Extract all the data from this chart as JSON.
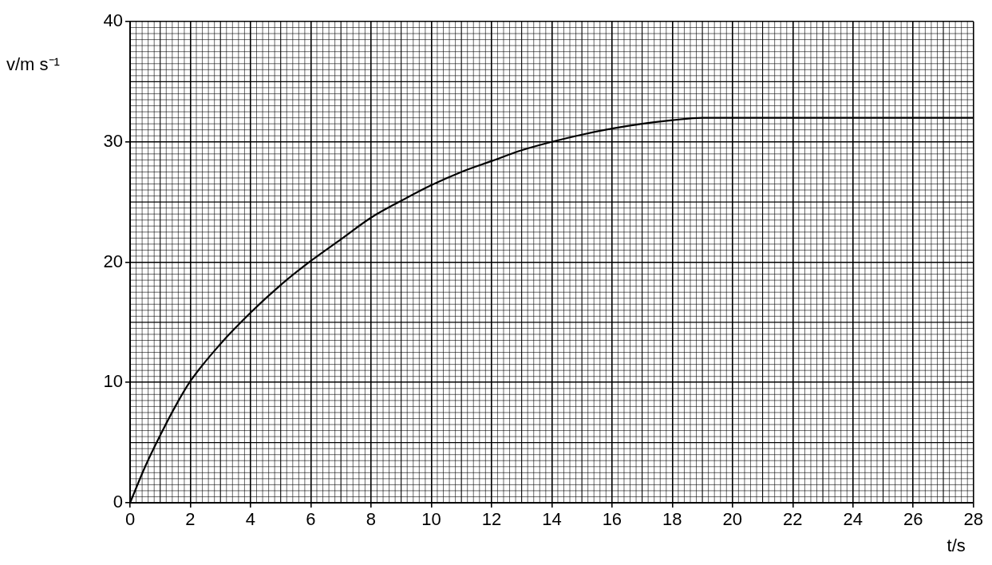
{
  "chart_data": {
    "type": "line",
    "xlabel": "t/s",
    "ylabel": "v/m s⁻¹",
    "series": [
      {
        "color": "#000000",
        "x": [
          0,
          0.5,
          1,
          1.5,
          2,
          3,
          4,
          5,
          6,
          7,
          8,
          9,
          10,
          11,
          12,
          13,
          14,
          15,
          16,
          17,
          18,
          19,
          20,
          22,
          24,
          26,
          28
        ],
        "values": [
          0,
          3,
          5.6,
          8,
          10.1,
          13.2,
          15.8,
          18.1,
          20.1,
          21.9,
          23.7,
          25.1,
          26.4,
          27.5,
          28.4,
          29.3,
          30,
          30.6,
          31.1,
          31.5,
          31.8,
          32,
          32,
          32,
          32,
          32,
          32
        ]
      }
    ],
    "xlim": [
      0,
      28
    ],
    "xticks": [
      0,
      2,
      4,
      6,
      8,
      10,
      12,
      14,
      16,
      18,
      20,
      22,
      24,
      26,
      28
    ],
    "ylim": [
      0,
      40
    ],
    "yticks": [
      0,
      10,
      20,
      30,
      40
    ],
    "grid": true,
    "legend": false,
    "marker": "none",
    "line_style": "solid"
  }
}
